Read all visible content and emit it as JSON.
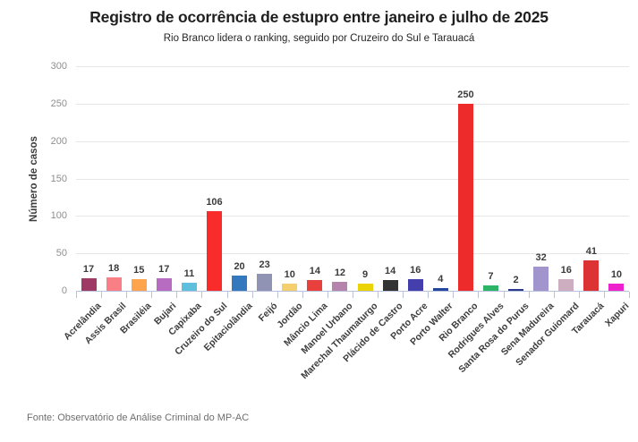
{
  "header": {
    "title": "Registro de ocorrência de estupro entre janeiro e julho de 2025",
    "subtitle": "Rio Branco lidera o ranking, seguido por Cruzeiro do Sul e Tarauacá"
  },
  "footer": {
    "source": "Fonte: Observatório de Análise Criminal do MP-AC"
  },
  "chart_data": {
    "type": "bar",
    "title": "Registro de ocorrência de estupro entre janeiro e julho de 2025",
    "subtitle": "Rio Branco lidera o ranking, seguido por Cruzeiro do Sul e Tarauacá",
    "source": "Fonte: Observatório de Análise Criminal do MP-AC",
    "xlabel": "",
    "ylabel": "Número de casos",
    "ylim": [
      0,
      300
    ],
    "yticks": [
      0,
      50,
      100,
      150,
      200,
      250,
      300
    ],
    "grid": true,
    "legend": false,
    "value_labels": true,
    "categories": [
      "Acrelândia",
      "Assis Brasil",
      "Brasiléia",
      "Bujari",
      "Capixaba",
      "Cruzeiro do Sul",
      "Epitaciolândia",
      "Feijó",
      "Jordão",
      "Mâncio Lima",
      "Manoel Urbano",
      "Marechal Thaumaturgo",
      "Plácido de Castro",
      "Porto Acre",
      "Porto Walter",
      "Rio Branco",
      "Rodrigues Alves",
      "Santa Rosa do Purus",
      "Sena Madureira",
      "Senador Guiomard",
      "Tarauacá",
      "Xapuri"
    ],
    "values": [
      17,
      18,
      15,
      17,
      11,
      106,
      20,
      23,
      10,
      14,
      12,
      9,
      14,
      16,
      4,
      250,
      7,
      2,
      32,
      16,
      41,
      10
    ],
    "colors": [
      "#9E3A64",
      "#F97F86",
      "#FDA44C",
      "#B76CC2",
      "#5FC0DD",
      "#FA2B2B",
      "#3478BD",
      "#9093B4",
      "#F5CF6E",
      "#E8403C",
      "#B584AC",
      "#EBD406",
      "#333333",
      "#443FAD",
      "#24479E",
      "#EE2B2B",
      "#2CB566",
      "#2B3A8F",
      "#A295CE",
      "#CCAEC0",
      "#DC3434",
      "#EE22CC"
    ]
  },
  "style": {
    "axis_color": "#b9c2da",
    "gridline_color": "#e6e6e6",
    "background": "#ffffff"
  }
}
